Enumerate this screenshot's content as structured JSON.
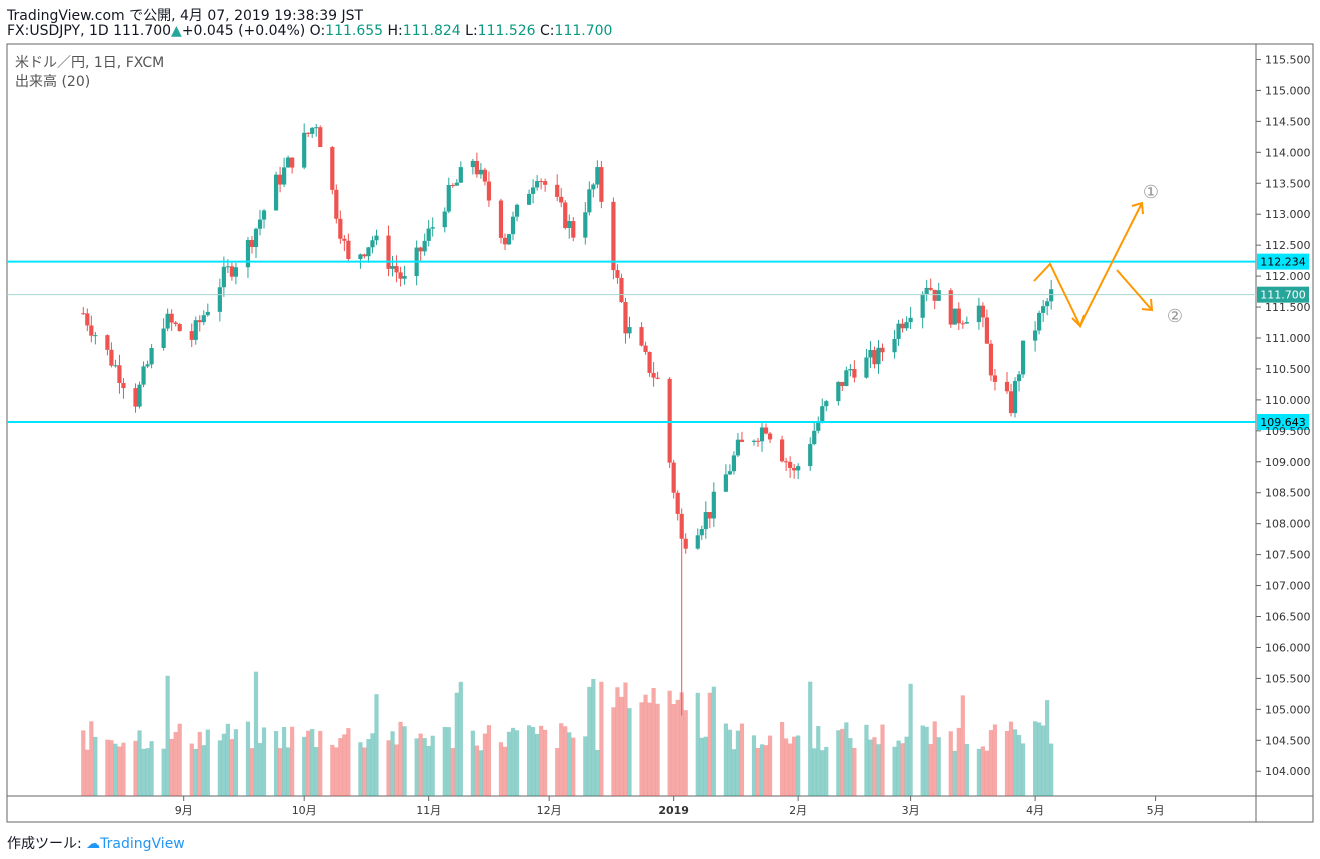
{
  "header": {
    "publish_line": "TradingView.com で公開, 4月 07, 2019 19:38:39 JST",
    "symbol": "FX:USDJPY, 1D",
    "last": "111.700",
    "change": "+0.045 (+0.04%)",
    "open_label": "O:",
    "open": "111.655",
    "high_label": "H:",
    "high": "111.824",
    "low_label": "L:",
    "low": "111.526",
    "close_label": "C:",
    "close": "111.700"
  },
  "legend": {
    "series": "米ドル／円, 1日, FXCM",
    "volume": "出来高 (20)"
  },
  "footer": {
    "prefix": "作成ツール:",
    "brand": "TradingView"
  },
  "colors": {
    "up": "#26a69a",
    "down": "#ef5350",
    "level": "#00e5ff",
    "arrow": "#ff9800",
    "last_bg": "#26a69a"
  },
  "chart_data": {
    "type": "candlestick",
    "title": "米ドル／円, 1日, FXCM",
    "ylim": [
      103.6,
      115.75
    ],
    "y_ticks": [
      "115.500",
      "115.000",
      "114.500",
      "114.000",
      "113.500",
      "113.000",
      "112.500",
      "112.000",
      "111.500",
      "111.000",
      "110.500",
      "110.000",
      "109.500",
      "109.000",
      "108.500",
      "108.000",
      "107.500",
      "107.000",
      "106.500",
      "106.000",
      "105.500",
      "105.000",
      "104.500",
      "104.000"
    ],
    "x_ticks": [
      "9月",
      "10月",
      "11月",
      "12月",
      "2019",
      "2月",
      "3月",
      "4月",
      "5月"
    ],
    "price_labels": {
      "resistance": "112.234",
      "last": "111.700",
      "support": "109.643"
    },
    "horizontal_levels": [
      112.234,
      109.643
    ],
    "last_price": 111.7,
    "annotations": [
      "①",
      "②"
    ],
    "anchors": [
      [
        "2018-08-07",
        111.4
      ],
      [
        "2018-08-20",
        110.0
      ],
      [
        "2018-08-27",
        111.3
      ],
      [
        "2018-09-03",
        111.0
      ],
      [
        "2018-09-10",
        111.9
      ],
      [
        "2018-09-17",
        112.5
      ],
      [
        "2018-09-24",
        113.5
      ],
      [
        "2018-10-04",
        114.5
      ],
      [
        "2018-10-12",
        112.2
      ],
      [
        "2018-10-18",
        112.6
      ],
      [
        "2018-10-26",
        111.9
      ],
      [
        "2018-11-05",
        113.2
      ],
      [
        "2018-11-12",
        113.9
      ],
      [
        "2018-11-20",
        112.6
      ],
      [
        "2018-11-28",
        113.7
      ],
      [
        "2018-12-07",
        112.7
      ],
      [
        "2018-12-13",
        113.6
      ],
      [
        "2018-12-20",
        111.2
      ],
      [
        "2018-12-28",
        110.3
      ],
      [
        "2019-01-03",
        107.7
      ],
      [
        "2019-01-10",
        108.2
      ],
      [
        "2019-01-17",
        109.2
      ],
      [
        "2019-01-24",
        109.6
      ],
      [
        "2019-01-31",
        108.8
      ],
      [
        "2019-02-07",
        109.8
      ],
      [
        "2019-02-14",
        110.5
      ],
      [
        "2019-02-21",
        110.7
      ],
      [
        "2019-02-28",
        111.4
      ],
      [
        "2019-03-05",
        111.9
      ],
      [
        "2019-03-12",
        111.3
      ],
      [
        "2019-03-18",
        111.5
      ],
      [
        "2019-03-22",
        110.2
      ],
      [
        "2019-03-26",
        109.9
      ],
      [
        "2019-03-29",
        110.8
      ],
      [
        "2019-04-05",
        111.7
      ]
    ],
    "volume_note": "daily volume bars, 20-period"
  }
}
